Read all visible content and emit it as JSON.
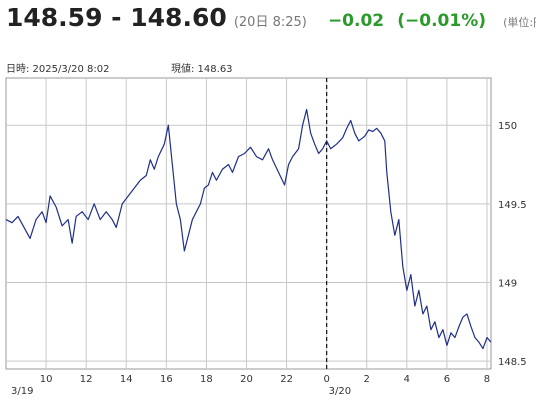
{
  "header": {
    "bid_ask": "148.59 - 148.60",
    "quote_time": "(20日 8:25)",
    "change": "−0.02",
    "change_pct": "(−0.01%)",
    "unit": "(単位:円)",
    "change_color": "#2a9a2a"
  },
  "info": {
    "datetime": "日時: 2025/3/20  8:02",
    "current": "現値: 148.63"
  },
  "chart_data": {
    "type": "line",
    "title": "",
    "xlabel": "",
    "ylabel": "",
    "x_unit": "hours from 3/19 08:00",
    "ylim": [
      148.45,
      150.3
    ],
    "xlim": [
      0,
      24.2
    ],
    "yticks": [
      {
        "value": 148.5,
        "label": "148.5"
      },
      {
        "value": 149,
        "label": "149"
      },
      {
        "value": 149.5,
        "label": "149.5"
      },
      {
        "value": 150,
        "label": "150"
      }
    ],
    "xticks": [
      {
        "value": 2,
        "label": "10"
      },
      {
        "value": 4,
        "label": "12"
      },
      {
        "value": 6,
        "label": "14"
      },
      {
        "value": 8,
        "label": "16"
      },
      {
        "value": 10,
        "label": "18"
      },
      {
        "value": 12,
        "label": "20"
      },
      {
        "value": 14,
        "label": "22"
      },
      {
        "value": 16,
        "label": "0"
      },
      {
        "value": 18,
        "label": "2"
      },
      {
        "value": 20,
        "label": "4"
      },
      {
        "value": 22,
        "label": "6"
      },
      {
        "value": 24,
        "label": "8"
      }
    ],
    "date_labels": [
      {
        "value": 0,
        "label": "3/19"
      },
      {
        "value": 16,
        "label": "3/20"
      }
    ],
    "day_divider": 16,
    "grid": true,
    "line_color": "#1f2f8a",
    "series": [
      {
        "name": "",
        "points": [
          [
            0.0,
            149.4
          ],
          [
            0.3,
            149.38
          ],
          [
            0.6,
            149.42
          ],
          [
            0.9,
            149.35
          ],
          [
            1.2,
            149.28
          ],
          [
            1.5,
            149.4
          ],
          [
            1.8,
            149.45
          ],
          [
            2.0,
            149.38
          ],
          [
            2.2,
            149.55
          ],
          [
            2.5,
            149.48
          ],
          [
            2.8,
            149.36
          ],
          [
            3.1,
            149.4
          ],
          [
            3.3,
            149.25
          ],
          [
            3.5,
            149.42
          ],
          [
            3.8,
            149.45
          ],
          [
            4.1,
            149.4
          ],
          [
            4.4,
            149.5
          ],
          [
            4.7,
            149.4
          ],
          [
            5.0,
            149.45
          ],
          [
            5.3,
            149.4
          ],
          [
            5.5,
            149.35
          ],
          [
            5.8,
            149.5
          ],
          [
            6.1,
            149.55
          ],
          [
            6.4,
            149.6
          ],
          [
            6.7,
            149.65
          ],
          [
            7.0,
            149.68
          ],
          [
            7.2,
            149.78
          ],
          [
            7.4,
            149.72
          ],
          [
            7.6,
            149.8
          ],
          [
            7.9,
            149.88
          ],
          [
            8.1,
            150.0
          ],
          [
            8.3,
            149.75
          ],
          [
            8.5,
            149.5
          ],
          [
            8.7,
            149.4
          ],
          [
            8.9,
            149.2
          ],
          [
            9.1,
            149.3
          ],
          [
            9.3,
            149.4
          ],
          [
            9.5,
            149.45
          ],
          [
            9.7,
            149.5
          ],
          [
            9.9,
            149.6
          ],
          [
            10.1,
            149.62
          ],
          [
            10.3,
            149.7
          ],
          [
            10.5,
            149.65
          ],
          [
            10.8,
            149.72
          ],
          [
            11.1,
            149.75
          ],
          [
            11.3,
            149.7
          ],
          [
            11.6,
            149.8
          ],
          [
            11.9,
            149.82
          ],
          [
            12.2,
            149.86
          ],
          [
            12.5,
            149.8
          ],
          [
            12.8,
            149.78
          ],
          [
            13.1,
            149.85
          ],
          [
            13.3,
            149.78
          ],
          [
            13.6,
            149.7
          ],
          [
            13.9,
            149.62
          ],
          [
            14.1,
            149.75
          ],
          [
            14.3,
            149.8
          ],
          [
            14.6,
            149.85
          ],
          [
            14.8,
            150.0
          ],
          [
            15.0,
            150.1
          ],
          [
            15.2,
            149.95
          ],
          [
            15.4,
            149.88
          ],
          [
            15.6,
            149.82
          ],
          [
            15.8,
            149.85
          ],
          [
            16.0,
            149.9
          ],
          [
            16.2,
            149.85
          ],
          [
            16.5,
            149.88
          ],
          [
            16.8,
            149.92
          ],
          [
            17.0,
            149.98
          ],
          [
            17.2,
            150.03
          ],
          [
            17.4,
            149.95
          ],
          [
            17.6,
            149.9
          ],
          [
            17.9,
            149.93
          ],
          [
            18.1,
            149.97
          ],
          [
            18.3,
            149.96
          ],
          [
            18.5,
            149.98
          ],
          [
            18.7,
            149.95
          ],
          [
            18.9,
            149.9
          ],
          [
            19.0,
            149.7
          ],
          [
            19.2,
            149.45
          ],
          [
            19.4,
            149.3
          ],
          [
            19.6,
            149.4
          ],
          [
            19.8,
            149.1
          ],
          [
            20.0,
            148.95
          ],
          [
            20.2,
            149.05
          ],
          [
            20.4,
            148.85
          ],
          [
            20.6,
            148.95
          ],
          [
            20.8,
            148.8
          ],
          [
            21.0,
            148.85
          ],
          [
            21.2,
            148.7
          ],
          [
            21.4,
            148.75
          ],
          [
            21.6,
            148.65
          ],
          [
            21.8,
            148.7
          ],
          [
            22.0,
            148.6
          ],
          [
            22.2,
            148.68
          ],
          [
            22.4,
            148.65
          ],
          [
            22.6,
            148.72
          ],
          [
            22.8,
            148.78
          ],
          [
            23.0,
            148.8
          ],
          [
            23.2,
            148.72
          ],
          [
            23.4,
            148.65
          ],
          [
            23.6,
            148.62
          ],
          [
            23.8,
            148.58
          ],
          [
            24.0,
            148.65
          ],
          [
            24.2,
            148.62
          ]
        ]
      }
    ]
  }
}
